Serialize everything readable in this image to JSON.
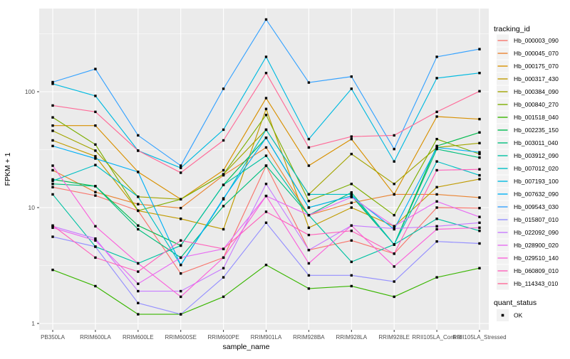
{
  "figure": {
    "background": "#FFFFFF"
  },
  "panel": {
    "background": "#EBEBEB",
    "grid_color": "#FFFFFF"
  },
  "axes": {
    "x_label": "sample_name",
    "y_label": "FPKM + 1",
    "y_tick_labels": [
      "1",
      "10",
      "100"
    ],
    "y_scale": "log10"
  },
  "legend": {
    "title": "tracking_id",
    "key_background": "#F2F2F2"
  },
  "legend2": {
    "title": "quant_status",
    "items": [
      {
        "label": "OK",
        "marker": "black-square"
      }
    ]
  },
  "chart_data": {
    "type": "line",
    "xlabel": "sample_name",
    "ylabel": "FPKM + 1",
    "yscale": "log10",
    "yticks": [
      1,
      10,
      100
    ],
    "minor_gridlines": [
      3.162,
      31.62,
      316.2
    ],
    "ylim": [
      1,
      540
    ],
    "grid": true,
    "legend_position": "right",
    "legend_title": "tracking_id",
    "point_legend": {
      "title": "quant_status",
      "label": "OK"
    },
    "categories": [
      "PB350LA",
      "RRIM600LA",
      "RRIM600LE",
      "RRIM600SE",
      "RRIM600PE",
      "RRIM901LA",
      "RRIM928BA",
      "RRIM928LA",
      "RRIM928LE",
      "RRII105LA_Control",
      "RRII105LA_Stressed"
    ],
    "series": [
      {
        "name": "Hb_000003_090",
        "color": "#F8766D",
        "values": [
          15,
          12.7,
          9.4,
          2.7,
          3.7,
          23,
          4.3,
          5.2,
          4.0,
          10,
          9.9
        ]
      },
      {
        "name": "Hb_000045_070",
        "color": "#EA8331",
        "values": [
          21,
          13.6,
          10.7,
          9.9,
          19,
          33,
          8.6,
          11,
          13,
          13,
          12.2
        ]
      },
      {
        "name": "Hb_000175_070",
        "color": "#D89000",
        "values": [
          51,
          51,
          20.3,
          11.8,
          21,
          88,
          23,
          39,
          13,
          61,
          58
        ]
      },
      {
        "name": "Hb_000317_430",
        "color": "#C09B00",
        "values": [
          38,
          27.7,
          9.4,
          8.0,
          6.5,
          71,
          6.7,
          10,
          6.9,
          15,
          17.6
        ]
      },
      {
        "name": "Hb_000384_090",
        "color": "#A3A500",
        "values": [
          46,
          31,
          12.4,
          11.8,
          19.4,
          47,
          13,
          29,
          16,
          33,
          36
        ]
      },
      {
        "name": "Hb_000840_270",
        "color": "#7CAE00",
        "values": [
          60,
          35,
          9.4,
          11.8,
          19.4,
          63,
          11.4,
          16,
          8.6,
          39,
          29
        ]
      },
      {
        "name": "Hb_001518_040",
        "color": "#39B600",
        "values": [
          2.9,
          2.1,
          1.2,
          1.2,
          1.7,
          3.2,
          2.0,
          2.1,
          1.7,
          2.5,
          3.0
        ]
      },
      {
        "name": "Hb_002235_150",
        "color": "#00BB4E",
        "values": [
          17.5,
          15.3,
          7.0,
          4.7,
          15.7,
          40,
          10,
          12.6,
          4.8,
          34,
          44.5
        ]
      },
      {
        "name": "Hb_003011_040",
        "color": "#00BF7D",
        "values": [
          16,
          15.3,
          6.5,
          3.7,
          10.3,
          23,
          8.6,
          13.5,
          4.8,
          32,
          27
        ]
      },
      {
        "name": "Hb_003912_090",
        "color": "#00C1A3",
        "values": [
          13,
          4.6,
          3.3,
          4.7,
          15.7,
          28,
          8.6,
          3.4,
          4.8,
          8,
          6.3
        ]
      },
      {
        "name": "Hb_007012_020",
        "color": "#00BFC4",
        "values": [
          17,
          23.3,
          12.4,
          3.2,
          11.8,
          47,
          13,
          13,
          4.8,
          25,
          19
        ]
      },
      {
        "name": "Hb_007193_100",
        "color": "#00BAE0",
        "values": [
          117,
          92,
          31,
          22,
          47,
          200,
          39,
          106,
          25,
          131,
          145
        ]
      },
      {
        "name": "Hb_007632_090",
        "color": "#00B0F6",
        "values": [
          34,
          26.5,
          20.3,
          3.2,
          12,
          40,
          10,
          12.6,
          6.5,
          33,
          30
        ]
      },
      {
        "name": "Hb_009543_030",
        "color": "#35A2FF",
        "values": [
          121,
          157,
          42,
          23,
          106,
          420,
          120,
          135,
          32,
          200,
          233
        ]
      },
      {
        "name": "Hb_015807_010",
        "color": "#9590FF",
        "values": [
          5.6,
          4.6,
          1.5,
          1.2,
          2.5,
          7.4,
          2.6,
          2.6,
          2.3,
          5.1,
          4.9
        ]
      },
      {
        "name": "Hb_022092_090",
        "color": "#C77CFF",
        "values": [
          6.9,
          5.4,
          1.9,
          1.9,
          3.0,
          16,
          4.3,
          7.0,
          6.6,
          6.9,
          7.4
        ]
      },
      {
        "name": "Hb_028900_020",
        "color": "#E76BF3",
        "values": [
          6.7,
          5.2,
          2.2,
          3.7,
          4.4,
          12.6,
          8.6,
          12.3,
          6.9,
          11.3,
          8.3
        ]
      },
      {
        "name": "Hb_029510_140",
        "color": "#FA62DB",
        "values": [
          23,
          6.9,
          3.3,
          1.7,
          3.7,
          12.6,
          3.3,
          7.0,
          3.1,
          6.5,
          6.7
        ]
      },
      {
        "name": "Hb_060809_010",
        "color": "#FF62BC",
        "values": [
          7.0,
          3.7,
          2.8,
          5.2,
          4.4,
          9.2,
          5.8,
          6.3,
          4.0,
          21,
          21.4
        ]
      },
      {
        "name": "Hb_114343_010",
        "color": "#FF6A98",
        "values": [
          76,
          67,
          31,
          20,
          38,
          145,
          33,
          41,
          42,
          67,
          101
        ]
      }
    ]
  }
}
